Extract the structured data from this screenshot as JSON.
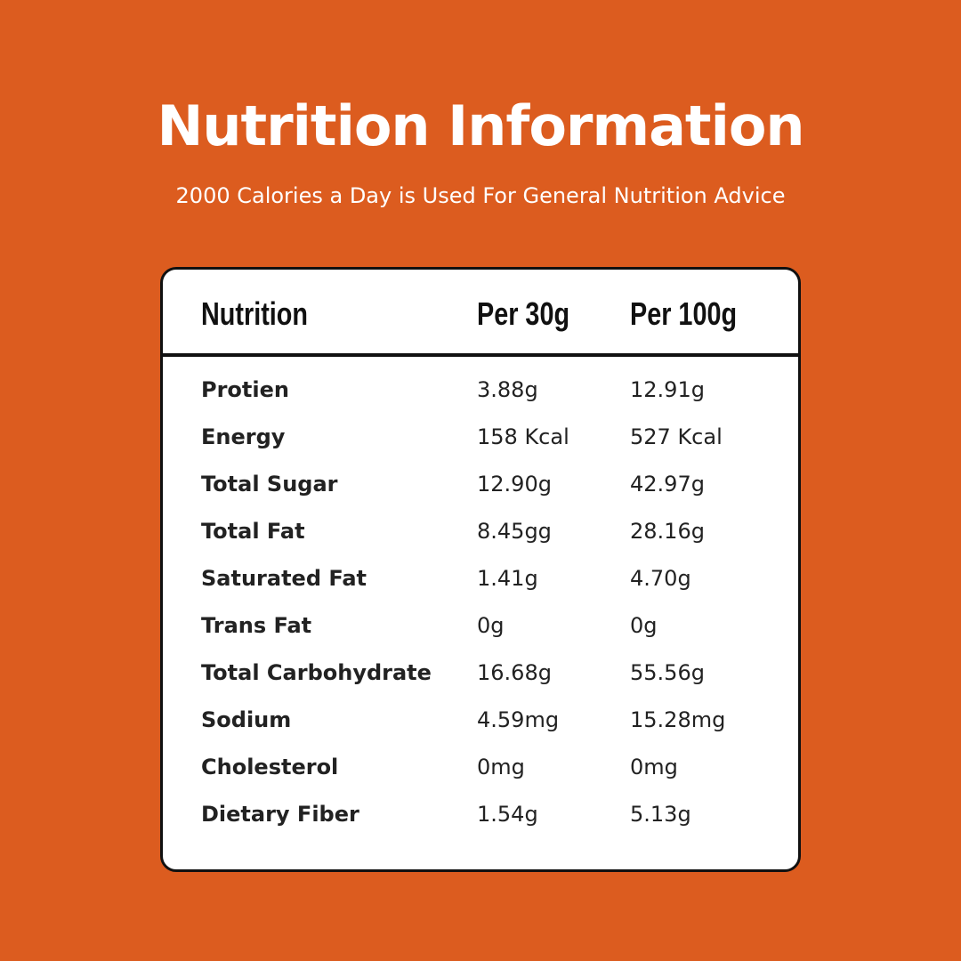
{
  "title": "Nutrition Information",
  "subtitle": "2000 Calories a Day is Used For General Nutrition Advice",
  "table": {
    "headers": {
      "nutrition": "Nutrition",
      "per30": "Per 30g",
      "per100": "Per 100g"
    },
    "rows": [
      {
        "name": "Protien",
        "per30": "3.88g",
        "per100": "12.91g"
      },
      {
        "name": "Energy",
        "per30": "158 Kcal",
        "per100": "527 Kcal"
      },
      {
        "name": "Total Sugar",
        "per30": "12.90g",
        "per100": "42.97g"
      },
      {
        "name": "Total Fat",
        "per30": "8.45gg",
        "per100": "28.16g"
      },
      {
        "name": "Saturated Fat",
        "per30": "1.41g",
        "per100": "4.70g"
      },
      {
        "name": "Trans Fat",
        "per30": "0g",
        "per100": "0g"
      },
      {
        "name": "Total Carbohydrate",
        "per30": "16.68g",
        "per100": "55.56g"
      },
      {
        "name": "Sodium",
        "per30": "4.59mg",
        "per100": "15.28mg"
      },
      {
        "name": "Cholesterol",
        "per30": "0mg",
        "per100": "0mg"
      },
      {
        "name": "Dietary Fiber",
        "per30": "1.54g",
        "per100": "5.13g"
      }
    ]
  },
  "colors": {
    "background": "#dc5c1f",
    "card": "#ffffff",
    "border": "#111111"
  }
}
